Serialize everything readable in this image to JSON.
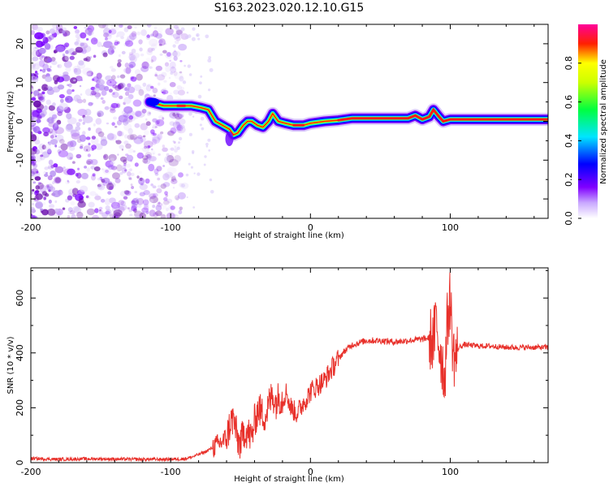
{
  "chart_data": [
    {
      "type": "heatmap",
      "title": "S163.2023.020.12.10.G15",
      "xlabel": "Height of straight line (km)",
      "ylabel": "Frequency (Hz)",
      "xlim": [
        -200,
        170
      ],
      "ylim": [
        -25,
        25
      ],
      "xticks": [
        -200,
        -100,
        0,
        100
      ],
      "xtick_labels": [
        "-200",
        "-100",
        "0",
        "100"
      ],
      "yticks": [
        -20,
        -10,
        0,
        10,
        20
      ],
      "ytick_labels": [
        "-20",
        "-10",
        "0",
        "10",
        "20"
      ],
      "ridge_frequency_hz": {
        "x": [
          -115,
          -105,
          -95,
          -90,
          -85,
          -78,
          -73,
          -68,
          -63,
          -58,
          -55,
          -52,
          -48,
          -45,
          -42,
          -38,
          -34,
          -30,
          -27,
          -23,
          -18,
          -12,
          -5,
          0,
          10,
          20,
          30,
          50,
          60,
          70,
          75,
          80,
          85,
          88,
          92,
          95,
          100,
          110,
          130,
          150,
          170
        ],
        "y": [
          5,
          4,
          4,
          4,
          4,
          3.5,
          3,
          0,
          -1,
          -2,
          -3.5,
          -3,
          -1,
          0,
          0,
          -1,
          -1.5,
          0,
          2,
          0,
          -0.5,
          -1,
          -1,
          -0.5,
          0,
          0.3,
          0.8,
          0.8,
          0.8,
          0.8,
          1.5,
          0.5,
          1.2,
          3,
          1.2,
          0,
          0.5,
          0.5,
          0.5,
          0.5,
          0.5
        ]
      },
      "colorbar": {
        "label": "Normalized spectral amplitude",
        "range": [
          0,
          1
        ],
        "ticks": [
          0.0,
          0.2,
          0.4,
          0.6,
          0.8
        ],
        "tick_labels": [
          "0.0",
          "0.2",
          "0.4",
          "0.6",
          "0.8"
        ],
        "colors": [
          "#ffffff",
          "#7a00ff",
          "#0000ff",
          "#00e5ff",
          "#00ff00",
          "#ffff00",
          "#ff0000",
          "#ff0099"
        ]
      }
    },
    {
      "type": "line",
      "xlabel": "Height of straight line (km)",
      "ylabel": "SNR (10 * v/v)",
      "xlim": [
        -200,
        170
      ],
      "ylim": [
        0,
        710
      ],
      "xticks": [
        -200,
        -100,
        0,
        100
      ],
      "xtick_labels": [
        "-200",
        "-100",
        "0",
        "100"
      ],
      "yticks": [
        0,
        200,
        400,
        600
      ],
      "ytick_labels": [
        "0",
        "200",
        "400",
        "600"
      ],
      "color": "#e8302a",
      "series": [
        {
          "name": "SNR",
          "x": [
            -200,
            -180,
            -160,
            -140,
            -120,
            -100,
            -90,
            -85,
            -80,
            -75,
            -70,
            -65,
            -60,
            -57,
            -55,
            -52,
            -50,
            -47,
            -45,
            -42,
            -40,
            -37,
            -35,
            -32,
            -30,
            -27,
            -25,
            -22,
            -20,
            -17,
            -15,
            -12,
            -10,
            -7,
            -5,
            -2,
            0,
            5,
            10,
            15,
            20,
            25,
            30,
            40,
            50,
            60,
            70,
            80,
            85,
            88,
            90,
            92,
            94,
            96,
            98,
            100,
            102,
            104,
            106,
            110,
            120,
            130,
            140,
            150,
            160,
            170
          ],
          "y": [
            15,
            12,
            14,
            13,
            12,
            12,
            14,
            20,
            30,
            40,
            55,
            70,
            90,
            150,
            160,
            80,
            70,
            120,
            110,
            90,
            150,
            200,
            180,
            170,
            210,
            250,
            220,
            240,
            230,
            260,
            210,
            190,
            180,
            200,
            220,
            240,
            260,
            280,
            300,
            340,
            380,
            410,
            430,
            445,
            445,
            440,
            445,
            450,
            455,
            440,
            520,
            430,
            380,
            300,
            520,
            600,
            400,
            380,
            420,
            430,
            425,
            425,
            420,
            420,
            420,
            420
          ]
        }
      ]
    }
  ]
}
